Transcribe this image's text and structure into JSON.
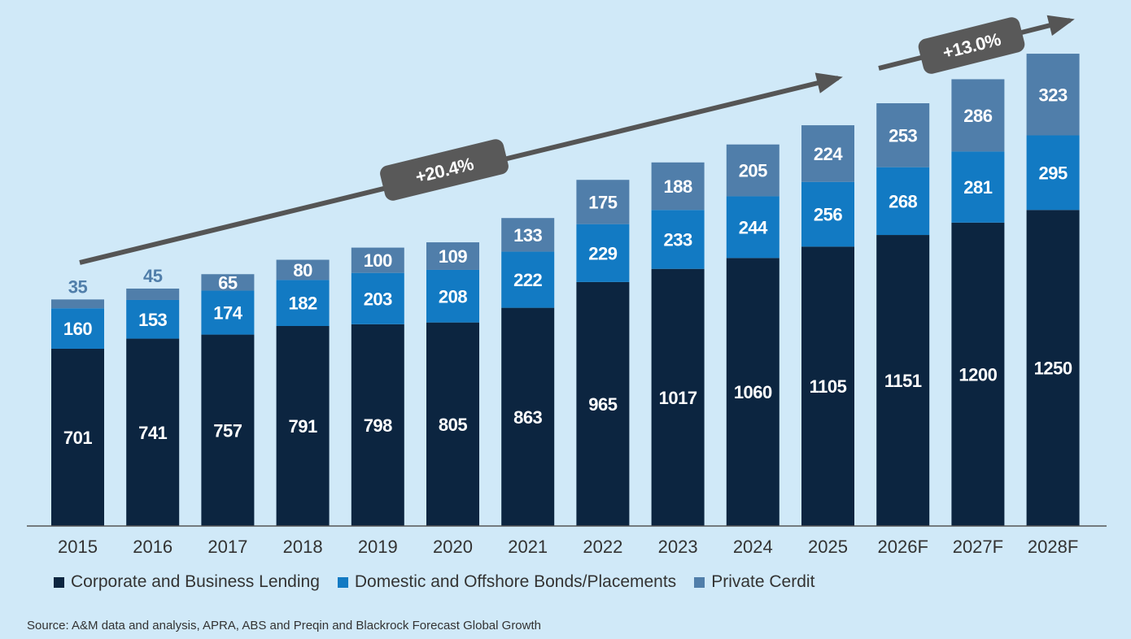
{
  "chart_data": {
    "type": "bar",
    "stacked": true,
    "categories": [
      "2015",
      "2016",
      "2017",
      "2018",
      "2019",
      "2020",
      "2021",
      "2022",
      "2023",
      "2024",
      "2025",
      "2026F",
      "2027F",
      "2028F"
    ],
    "series": [
      {
        "name": "Corporate and Business Lending",
        "color": "#0c2540",
        "values": [
          701,
          741,
          757,
          791,
          798,
          805,
          863,
          965,
          1017,
          1060,
          1105,
          1151,
          1200,
          1250
        ]
      },
      {
        "name": "Domestic and Offshore Bonds/Placements",
        "color": "#127ac3",
        "values": [
          160,
          153,
          174,
          182,
          203,
          208,
          222,
          229,
          233,
          244,
          256,
          268,
          281,
          295
        ]
      },
      {
        "name": "Private Cerdit",
        "color": "#507eaa",
        "values": [
          35,
          45,
          65,
          80,
          100,
          109,
          133,
          175,
          188,
          205,
          224,
          253,
          286,
          323
        ]
      }
    ],
    "annotations": [
      {
        "text": "+20.4%",
        "from": "2015",
        "to": "2025"
      },
      {
        "text": "+13.0%",
        "from": "2025",
        "to": "2028F"
      }
    ],
    "legend_position": "bottom-left",
    "grid": false,
    "source": "Source: A&M data and analysis, APRA, ABS and Preqin and Blackrock Forecast Global Growth"
  }
}
